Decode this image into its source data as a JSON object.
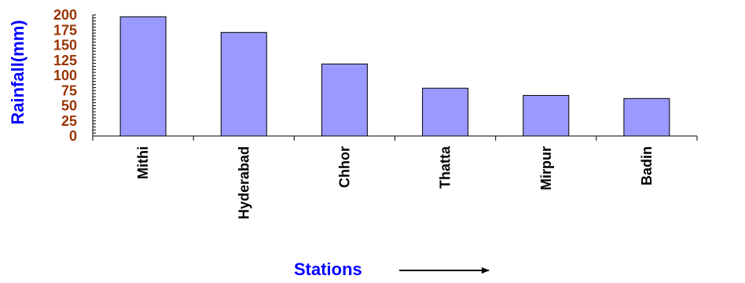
{
  "chart_data": {
    "type": "bar",
    "categories": [
      "Mithi",
      "Hyderabad",
      "Chhor",
      "Thatta",
      "Mirpur",
      "Badin"
    ],
    "values": [
      197,
      171,
      119,
      79,
      67,
      62
    ],
    "xlabel": "Stations",
    "ylabel": "Rainfall(mm)",
    "ylim": [
      0,
      200
    ],
    "yticks": [
      0,
      25,
      50,
      75,
      100,
      125,
      150,
      175,
      200
    ],
    "ytick_labels": [
      "0",
      "25",
      "50",
      "75",
      "100",
      "125",
      "150",
      "175",
      "200"
    ],
    "grid": false,
    "legend": "none"
  },
  "colors": {
    "bar_fill": "#9999ff",
    "bar_stroke": "#000000",
    "ytick_label": "#993300",
    "axis_title": "#0000ff",
    "axis_line": "#000000"
  },
  "icons": {
    "xlabel_arrow": "right-arrow-icon"
  }
}
